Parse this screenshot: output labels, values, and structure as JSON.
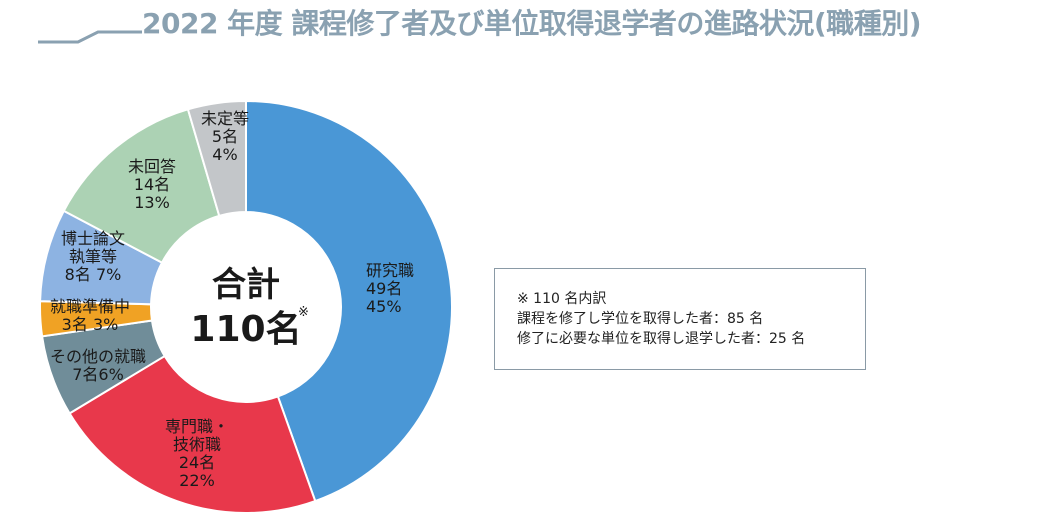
{
  "title": "2022 年度 課程修了者及び単位取得退学者の進路状況(職種別)",
  "colors": {
    "title": "#8aa1b1",
    "slices": [
      "#4a97d6",
      "#e8384b",
      "#708d99",
      "#f0a224",
      "#8db3e2",
      "#acd2b4",
      "#c3c6c9"
    ]
  },
  "chart_data": {
    "type": "pie",
    "total": 110,
    "center_label": {
      "line1": "合計",
      "line2": "110名",
      "mark": "※"
    },
    "slices": [
      {
        "label": [
          "研究職",
          "49名",
          "45%"
        ],
        "count": 49,
        "percent": 45
      },
      {
        "label": [
          "専門職・",
          "技術職",
          "24名",
          "22%"
        ],
        "count": 24,
        "percent": 22
      },
      {
        "label": [
          "その他の就職",
          "7名6%"
        ],
        "count": 7,
        "percent": 6
      },
      {
        "label": [
          "就職準備中",
          "3名 3%"
        ],
        "count": 3,
        "percent": 3
      },
      {
        "label": [
          "博士論文",
          "執筆等",
          "8名 7%"
        ],
        "count": 8,
        "percent": 7
      },
      {
        "label": [
          "未回答",
          "14名",
          "13%"
        ],
        "count": 14,
        "percent": 13
      },
      {
        "label": [
          "未定等",
          "5名",
          "4%"
        ],
        "count": 5,
        "percent": 4
      }
    ]
  },
  "note": {
    "heading": "※ 110 名内訳",
    "lines": [
      "課程を修了し学位を取得した者：85 名",
      "修了に必要な単位を取得し退学した者：25 名"
    ]
  }
}
